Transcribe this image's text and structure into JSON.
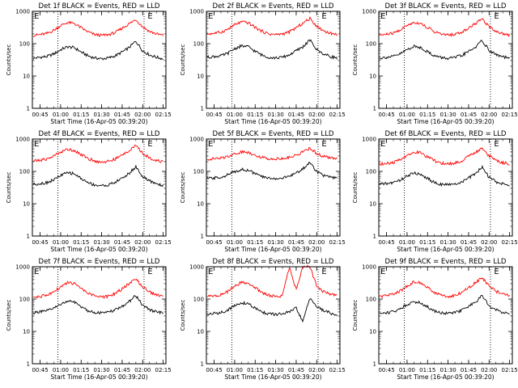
{
  "figure": {
    "y_label": "Counts/sec",
    "x_label": "Start Time (16-Apr-05 00:39:20)",
    "x_ticks": [
      "00:45",
      "01:00",
      "01:15",
      "01:30",
      "01:45",
      "02:00",
      "02:15"
    ],
    "y_ticks": [
      "1",
      "10",
      "100",
      "1000"
    ],
    "event_marker": "E",
    "colors": {
      "events": "#000000",
      "lld": "#ff0000",
      "axes": "#000000",
      "background": "#ffffff"
    }
  },
  "chart_data": [
    {
      "type": "line",
      "title": "Det 1f BLACK = Events, RED = LLD",
      "xlabel": "Start Time (16-Apr-05 00:39:20)",
      "ylabel": "Counts/sec",
      "xlim": [
        "00:39:20",
        "02:17:00"
      ],
      "ylim": [
        1,
        1000
      ],
      "yscale": "log",
      "vlines": [
        "00:58",
        "02:01"
      ],
      "markers": [
        "00:40",
        "02:03"
      ],
      "x": [
        "00:40",
        "00:45",
        "00:50",
        "00:55",
        "01:00",
        "01:05",
        "01:10",
        "01:15",
        "01:20",
        "01:25",
        "01:30",
        "01:35",
        "01:40",
        "01:45",
        "01:50",
        "01:55",
        "02:00",
        "02:05",
        "02:10",
        "02:15"
      ],
      "series": [
        {
          "name": "Events",
          "values": [
            35,
            38,
            40,
            48,
            65,
            80,
            75,
            55,
            42,
            36,
            34,
            36,
            42,
            55,
            75,
            120,
            60,
            45,
            38,
            34
          ]
        },
        {
          "name": "LLD",
          "values": [
            180,
            190,
            205,
            260,
            360,
            450,
            420,
            310,
            230,
            190,
            180,
            190,
            220,
            300,
            410,
            560,
            330,
            240,
            200,
            180
          ]
        }
      ]
    },
    {
      "type": "line",
      "title": "Det 2f BLACK = Events, RED = LLD",
      "xlabel": "Start Time (16-Apr-05 00:39:20)",
      "ylabel": "Counts/sec",
      "xlim": [
        "00:39:20",
        "02:17:00"
      ],
      "ylim": [
        1,
        1000
      ],
      "yscale": "log",
      "vlines": [
        "00:58",
        "02:01"
      ],
      "markers": [
        "00:40",
        "02:03"
      ],
      "x": [
        "00:40",
        "00:45",
        "00:50",
        "00:55",
        "01:00",
        "01:05",
        "01:10",
        "01:15",
        "01:20",
        "01:25",
        "01:30",
        "01:35",
        "01:40",
        "01:45",
        "01:50",
        "01:55",
        "02:00",
        "02:05",
        "02:10",
        "02:15"
      ],
      "series": [
        {
          "name": "Events",
          "values": [
            38,
            40,
            42,
            50,
            70,
            85,
            80,
            58,
            44,
            38,
            36,
            38,
            45,
            60,
            80,
            130,
            65,
            48,
            40,
            36
          ]
        },
        {
          "name": "LLD",
          "values": [
            200,
            210,
            225,
            280,
            380,
            470,
            440,
            320,
            240,
            200,
            190,
            200,
            230,
            310,
            430,
            600,
            350,
            250,
            210,
            190
          ]
        }
      ]
    },
    {
      "type": "line",
      "title": "Det 3f BLACK = Events, RED = LLD",
      "xlabel": "Start Time (16-Apr-05 00:39:20)",
      "ylabel": "Counts/sec",
      "xlim": [
        "00:39:20",
        "02:17:00"
      ],
      "ylim": [
        1,
        1000
      ],
      "yscale": "log",
      "vlines": [
        "00:58",
        "02:01"
      ],
      "markers": [
        "00:40",
        "02:03"
      ],
      "x": [
        "00:40",
        "00:45",
        "00:50",
        "00:55",
        "01:00",
        "01:05",
        "01:10",
        "01:15",
        "01:20",
        "01:25",
        "01:30",
        "01:35",
        "01:40",
        "01:45",
        "01:50",
        "01:55",
        "02:00",
        "02:05",
        "02:10",
        "02:15"
      ],
      "series": [
        {
          "name": "Events",
          "values": [
            36,
            38,
            40,
            48,
            66,
            82,
            76,
            56,
            42,
            37,
            35,
            37,
            43,
            57,
            78,
            125,
            62,
            46,
            39,
            35
          ]
        },
        {
          "name": "LLD",
          "values": [
            185,
            195,
            210,
            265,
            365,
            455,
            425,
            315,
            235,
            195,
            185,
            195,
            225,
            305,
            420,
            580,
            340,
            245,
            205,
            185
          ]
        }
      ]
    },
    {
      "type": "line",
      "title": "Det 4f BLACK = Events, RED = LLD",
      "xlabel": "Start Time (16-Apr-05 00:39:20)",
      "ylabel": "Counts/sec",
      "xlim": [
        "00:39:20",
        "02:17:00"
      ],
      "ylim": [
        1,
        1000
      ],
      "yscale": "log",
      "vlines": [
        "00:58",
        "02:01"
      ],
      "markers": [
        "00:40",
        "02:03"
      ],
      "x": [
        "00:40",
        "00:45",
        "00:50",
        "00:55",
        "01:00",
        "01:05",
        "01:10",
        "01:15",
        "01:20",
        "01:25",
        "01:30",
        "01:35",
        "01:40",
        "01:45",
        "01:50",
        "01:55",
        "02:00",
        "02:05",
        "02:10",
        "02:15"
      ],
      "series": [
        {
          "name": "Events",
          "values": [
            40,
            42,
            45,
            55,
            75,
            90,
            85,
            60,
            45,
            38,
            36,
            38,
            46,
            62,
            85,
            140,
            68,
            50,
            42,
            36
          ]
        },
        {
          "name": "LLD",
          "values": [
            210,
            220,
            240,
            300,
            400,
            480,
            450,
            330,
            250,
            205,
            195,
            205,
            240,
            320,
            440,
            620,
            360,
            260,
            220,
            195
          ]
        }
      ]
    },
    {
      "type": "line",
      "title": "Det 5f BLACK = Events, RED = LLD",
      "xlabel": "Start Time (16-Apr-05 00:39:20)",
      "ylabel": "Counts/sec",
      "xlim": [
        "00:39:20",
        "02:17:00"
      ],
      "ylim": [
        1,
        1000
      ],
      "yscale": "log",
      "vlines": [
        "00:58",
        "02:01"
      ],
      "markers": [
        "00:40",
        "02:03"
      ],
      "x": [
        "00:40",
        "00:45",
        "00:50",
        "00:55",
        "01:00",
        "01:05",
        "01:10",
        "01:15",
        "01:20",
        "01:25",
        "01:30",
        "01:35",
        "01:40",
        "01:45",
        "01:50",
        "01:55",
        "02:00",
        "02:05",
        "02:10",
        "02:15"
      ],
      "series": [
        {
          "name": "Events",
          "values": [
            60,
            62,
            66,
            78,
            98,
            115,
            108,
            85,
            68,
            62,
            60,
            62,
            70,
            90,
            120,
            190,
            100,
            75,
            65,
            60
          ]
        },
        {
          "name": "LLD",
          "values": [
            240,
            245,
            255,
            290,
            350,
            400,
            385,
            320,
            270,
            250,
            245,
            250,
            270,
            320,
            400,
            520,
            360,
            290,
            260,
            245
          ]
        }
      ]
    },
    {
      "type": "line",
      "title": "Det 6f BLACK = Events, RED = LLD",
      "xlabel": "Start Time (16-Apr-05 00:39:20)",
      "ylabel": "Counts/sec",
      "xlim": [
        "00:39:20",
        "02:17:00"
      ],
      "ylim": [
        1,
        1000
      ],
      "yscale": "log",
      "vlines": [
        "00:58",
        "02:01"
      ],
      "markers": [
        "00:40",
        "02:03"
      ],
      "x": [
        "00:40",
        "00:45",
        "00:50",
        "00:55",
        "01:00",
        "01:05",
        "01:10",
        "01:15",
        "01:20",
        "01:25",
        "01:30",
        "01:35",
        "01:40",
        "01:45",
        "01:50",
        "01:55",
        "02:00",
        "02:05",
        "02:10",
        "02:15"
      ],
      "series": [
        {
          "name": "Events",
          "values": [
            40,
            42,
            45,
            54,
            72,
            88,
            82,
            60,
            45,
            40,
            38,
            40,
            47,
            62,
            85,
            135,
            66,
            48,
            41,
            38
          ]
        },
        {
          "name": "LLD",
          "values": [
            170,
            175,
            185,
            230,
            320,
            400,
            380,
            280,
            210,
            180,
            170,
            180,
            210,
            290,
            390,
            520,
            300,
            220,
            185,
            170
          ]
        }
      ]
    },
    {
      "type": "line",
      "title": "Det 7f BLACK = Events, RED = LLD",
      "xlabel": "Start Time (16-Apr-05 00:39:20)",
      "ylabel": "Counts/sec",
      "xlim": [
        "00:39:20",
        "02:17:00"
      ],
      "ylim": [
        1,
        1000
      ],
      "yscale": "log",
      "vlines": [
        "00:58",
        "02:01"
      ],
      "markers": [
        "00:40",
        "02:03"
      ],
      "x": [
        "00:40",
        "00:45",
        "00:50",
        "00:55",
        "01:00",
        "01:05",
        "01:10",
        "01:15",
        "01:20",
        "01:25",
        "01:30",
        "01:35",
        "01:40",
        "01:45",
        "01:50",
        "01:55",
        "02:00",
        "02:05",
        "02:10",
        "02:15"
      ],
      "series": [
        {
          "name": "Events",
          "values": [
            38,
            40,
            43,
            52,
            70,
            86,
            80,
            58,
            44,
            39,
            37,
            39,
            46,
            60,
            82,
            130,
            64,
            47,
            40,
            37
          ]
        },
        {
          "name": "LLD",
          "values": [
            115,
            120,
            130,
            165,
            235,
            320,
            300,
            210,
            150,
            125,
            115,
            122,
            150,
            210,
            300,
            420,
            240,
            165,
            135,
            120
          ]
        }
      ]
    },
    {
      "type": "line",
      "title": "Det 8f BLACK = Events, RED = LLD",
      "xlabel": "Start Time (16-Apr-05 00:39:20)",
      "ylabel": "Counts/sec",
      "xlim": [
        "00:39:20",
        "02:17:00"
      ],
      "ylim": [
        1,
        1000
      ],
      "yscale": "log",
      "vlines": [
        "00:58",
        "02:01"
      ],
      "markers": [
        "00:40",
        "02:03"
      ],
      "x": [
        "00:40",
        "00:45",
        "00:50",
        "00:55",
        "01:00",
        "01:05",
        "01:10",
        "01:15",
        "01:20",
        "01:25",
        "01:30",
        "01:35",
        "01:40",
        "01:45",
        "01:50",
        "01:55",
        "02:00",
        "02:05",
        "02:10",
        "02:15"
      ],
      "series": [
        {
          "name": "Events",
          "values": [
            34,
            36,
            38,
            46,
            62,
            76,
            72,
            52,
            40,
            35,
            33,
            35,
            40,
            52,
            20,
            110,
            58,
            44,
            37,
            33
          ]
        },
        {
          "name": "LLD",
          "values": [
            120,
            125,
            135,
            170,
            245,
            330,
            310,
            220,
            160,
            130,
            120,
            128,
            1000,
            200,
            1000,
            1000,
            250,
            170,
            140,
            125
          ]
        }
      ]
    },
    {
      "type": "line",
      "title": "Det 9f BLACK = Events, RED = LLD",
      "xlabel": "Start Time (16-Apr-05 00:39:20)",
      "ylabel": "Counts/sec",
      "xlim": [
        "00:39:20",
        "02:17:00"
      ],
      "ylim": [
        1,
        1000
      ],
      "yscale": "log",
      "vlines": [
        "00:58",
        "02:01"
      ],
      "markers": [
        "00:40",
        "02:03"
      ],
      "x": [
        "00:40",
        "00:45",
        "00:50",
        "00:55",
        "01:00",
        "01:05",
        "01:10",
        "01:15",
        "01:20",
        "01:25",
        "01:30",
        "01:35",
        "01:40",
        "01:45",
        "01:50",
        "01:55",
        "02:00",
        "02:05",
        "02:10",
        "02:15"
      ],
      "series": [
        {
          "name": "Events",
          "values": [
            36,
            38,
            41,
            50,
            68,
            84,
            78,
            57,
            43,
            38,
            36,
            38,
            45,
            59,
            80,
            128,
            62,
            46,
            39,
            36
          ]
        },
        {
          "name": "LLD",
          "values": [
            120,
            126,
            138,
            175,
            250,
            340,
            318,
            225,
            162,
            132,
            122,
            130,
            160,
            225,
            320,
            450,
            255,
            175,
            142,
            125
          ]
        }
      ]
    }
  ]
}
